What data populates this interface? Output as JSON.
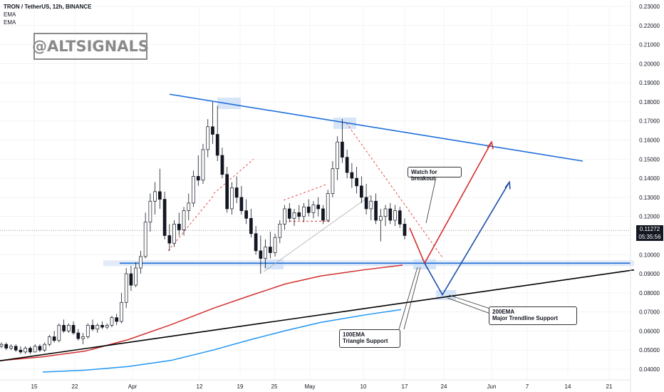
{
  "header": {
    "symbol_line": "TRON / TetherUS, 12h, BINANCE",
    "indicators": [
      "EMA",
      "EMA"
    ]
  },
  "watermark": "@ALTSIGNALS",
  "annotations": {
    "watch": "Watch for breakout",
    "ema100": [
      "100EMA",
      "Triangle Support"
    ],
    "ema200": [
      "200EMA",
      "Major Trendline Support"
    ]
  },
  "price_tag": {
    "price": "0.11272",
    "countdown": "05:35:56"
  },
  "colors": {
    "up": "#ffffff",
    "down": "#131722",
    "ema200": "#d32f2f",
    "ema100": "#2196f3",
    "resistance": "#1e6fd9",
    "support_line": "#1e6fd9",
    "trend_support": "#000000",
    "bull_arrow": "#d32f2f",
    "bear_arrow": "#1f4fa8",
    "highlight": "#cfe1f7"
  },
  "chart_data": {
    "type": "candlestick",
    "yaxis_ticks": [
      "0.23000",
      "0.22000",
      "0.21000",
      "0.20000",
      "0.19000",
      "0.18000",
      "0.17000",
      "0.16000",
      "0.15000",
      "0.14000",
      "0.13000",
      "0.12000",
      "0.11000",
      "0.10000",
      "0.09000",
      "0.08000",
      "0.07000",
      "0.06000",
      "0.05000",
      "0.04000"
    ],
    "ylim": [
      0.0355,
      0.2325
    ],
    "xaxis_ticks": [
      "15",
      "22",
      "Apr",
      "12",
      "19",
      "25",
      "May",
      "10",
      "17",
      "24",
      "Jun",
      "7",
      "14",
      "21"
    ],
    "last_price": 0.11272,
    "candles_ohlc": [
      [
        0.052,
        0.054,
        0.051,
        0.053
      ],
      [
        0.053,
        0.054,
        0.05,
        0.051
      ],
      [
        0.051,
        0.053,
        0.05,
        0.052
      ],
      [
        0.052,
        0.053,
        0.049,
        0.05
      ],
      [
        0.05,
        0.052,
        0.048,
        0.049
      ],
      [
        0.049,
        0.052,
        0.048,
        0.051
      ],
      [
        0.051,
        0.052,
        0.048,
        0.049
      ],
      [
        0.049,
        0.053,
        0.049,
        0.052
      ],
      [
        0.052,
        0.053,
        0.049,
        0.05
      ],
      [
        0.05,
        0.054,
        0.049,
        0.053
      ],
      [
        0.053,
        0.058,
        0.052,
        0.057
      ],
      [
        0.057,
        0.06,
        0.054,
        0.055
      ],
      [
        0.055,
        0.064,
        0.054,
        0.063
      ],
      [
        0.063,
        0.066,
        0.059,
        0.06
      ],
      [
        0.06,
        0.064,
        0.059,
        0.063
      ],
      [
        0.063,
        0.065,
        0.058,
        0.059
      ],
      [
        0.059,
        0.061,
        0.055,
        0.056
      ],
      [
        0.056,
        0.059,
        0.053,
        0.057
      ],
      [
        0.057,
        0.064,
        0.056,
        0.063
      ],
      [
        0.063,
        0.066,
        0.06,
        0.061
      ],
      [
        0.061,
        0.064,
        0.059,
        0.063
      ],
      [
        0.063,
        0.065,
        0.061,
        0.062
      ],
      [
        0.062,
        0.064,
        0.061,
        0.063
      ],
      [
        0.063,
        0.068,
        0.062,
        0.067
      ],
      [
        0.067,
        0.069,
        0.063,
        0.065
      ],
      [
        0.065,
        0.08,
        0.064,
        0.075
      ],
      [
        0.075,
        0.093,
        0.072,
        0.09
      ],
      [
        0.09,
        0.094,
        0.081,
        0.084
      ],
      [
        0.084,
        0.096,
        0.083,
        0.093
      ],
      [
        0.093,
        0.102,
        0.09,
        0.099
      ],
      [
        0.099,
        0.122,
        0.098,
        0.117
      ],
      [
        0.117,
        0.132,
        0.112,
        0.128
      ],
      [
        0.128,
        0.138,
        0.121,
        0.133
      ],
      [
        0.133,
        0.145,
        0.124,
        0.129
      ],
      [
        0.129,
        0.133,
        0.108,
        0.11
      ],
      [
        0.11,
        0.116,
        0.102,
        0.106
      ],
      [
        0.106,
        0.118,
        0.104,
        0.116
      ],
      [
        0.116,
        0.122,
        0.11,
        0.113
      ],
      [
        0.113,
        0.125,
        0.11,
        0.123
      ],
      [
        0.123,
        0.132,
        0.118,
        0.127
      ],
      [
        0.127,
        0.144,
        0.125,
        0.141
      ],
      [
        0.141,
        0.152,
        0.136,
        0.139
      ],
      [
        0.139,
        0.158,
        0.137,
        0.155
      ],
      [
        0.155,
        0.171,
        0.151,
        0.167
      ],
      [
        0.167,
        0.18,
        0.158,
        0.163
      ],
      [
        0.163,
        0.178,
        0.149,
        0.152
      ],
      [
        0.152,
        0.156,
        0.14,
        0.142
      ],
      [
        0.142,
        0.146,
        0.122,
        0.124
      ],
      [
        0.124,
        0.138,
        0.121,
        0.135
      ],
      [
        0.135,
        0.141,
        0.127,
        0.13
      ],
      [
        0.13,
        0.136,
        0.121,
        0.123
      ],
      [
        0.123,
        0.129,
        0.116,
        0.119
      ],
      [
        0.119,
        0.124,
        0.109,
        0.111
      ],
      [
        0.111,
        0.115,
        0.1,
        0.102
      ],
      [
        0.102,
        0.11,
        0.09,
        0.098
      ],
      [
        0.098,
        0.108,
        0.093,
        0.104
      ],
      [
        0.104,
        0.112,
        0.098,
        0.101
      ],
      [
        0.101,
        0.111,
        0.099,
        0.109
      ],
      [
        0.109,
        0.118,
        0.106,
        0.116
      ],
      [
        0.116,
        0.126,
        0.113,
        0.124
      ],
      [
        0.124,
        0.127,
        0.117,
        0.119
      ],
      [
        0.119,
        0.124,
        0.115,
        0.122
      ],
      [
        0.122,
        0.126,
        0.118,
        0.12
      ],
      [
        0.12,
        0.127,
        0.117,
        0.125
      ],
      [
        0.125,
        0.129,
        0.12,
        0.122
      ],
      [
        0.122,
        0.128,
        0.119,
        0.126
      ],
      [
        0.126,
        0.13,
        0.12,
        0.124
      ],
      [
        0.124,
        0.126,
        0.116,
        0.118
      ],
      [
        0.118,
        0.134,
        0.117,
        0.132
      ],
      [
        0.132,
        0.149,
        0.13,
        0.145
      ],
      [
        0.145,
        0.162,
        0.139,
        0.159
      ],
      [
        0.159,
        0.171,
        0.148,
        0.151
      ],
      [
        0.151,
        0.155,
        0.14,
        0.143
      ],
      [
        0.143,
        0.148,
        0.135,
        0.14
      ],
      [
        0.14,
        0.146,
        0.132,
        0.136
      ],
      [
        0.136,
        0.141,
        0.127,
        0.13
      ],
      [
        0.13,
        0.137,
        0.121,
        0.124
      ],
      [
        0.124,
        0.131,
        0.118,
        0.128
      ],
      [
        0.128,
        0.132,
        0.116,
        0.118
      ],
      [
        0.118,
        0.124,
        0.107,
        0.12
      ],
      [
        0.12,
        0.126,
        0.115,
        0.124
      ],
      [
        0.124,
        0.127,
        0.116,
        0.118
      ],
      [
        0.118,
        0.126,
        0.115,
        0.123
      ],
      [
        0.123,
        0.125,
        0.114,
        0.116
      ],
      [
        0.116,
        0.119,
        0.108,
        0.11
      ]
    ],
    "ema_200": [
      0.0445,
      0.0465,
      0.0495,
      0.0555,
      0.0633,
      0.072,
      0.0784,
      0.0846,
      0.0888,
      0.092,
      0.0945
    ],
    "ema_100": [
      0.0385,
      0.0395,
      0.0414,
      0.0446,
      0.0501,
      0.0553,
      0.0601,
      0.0645,
      0.0683,
      0.0712
    ],
    "drawings": {
      "descending_resistance": [
        [
          0.184
        ],
        [
          0.149
        ]
      ],
      "horizontal_support": 0.0955,
      "rising_trend_support": [
        [
          0.0444
        ],
        [
          0.092
        ]
      ],
      "breakout_target_up": 0.159,
      "bounce_target_up": 0.138,
      "support_touch": 0.0955,
      "ema200_touch": 0.079
    }
  }
}
